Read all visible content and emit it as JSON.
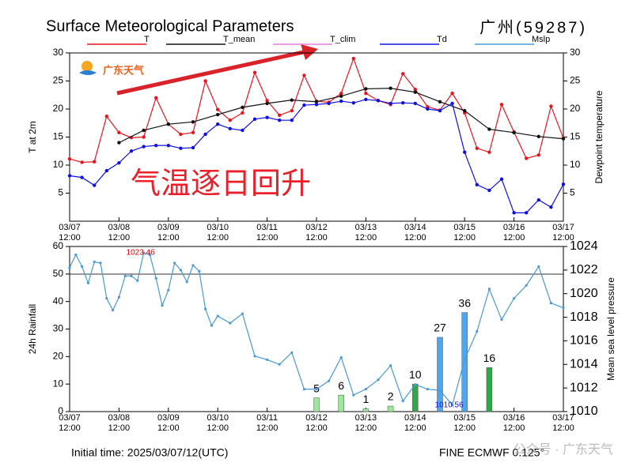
{
  "header": {
    "title": "Surface Meteorological Parameters",
    "station": "广州(59287)",
    "overlay": "气温逐日回升",
    "logo": "广东天气"
  },
  "footer": {
    "init": "Initial time: 2025/03/07/12(UTC)",
    "model": "FINE ECMWF 0.125°",
    "watermark": "公众号 · 广东天气"
  },
  "legend_only": [
    {
      "name": "T_clim",
      "color": "#e87fe0"
    }
  ],
  "chart_data": [
    {
      "type": "line",
      "ylabel": "T at 2m",
      "y2label": "Dewpoint temperature",
      "xlim": [
        0,
        10
      ],
      "xticks": [
        {
          "value": 0,
          "label": "03/07\n12:00"
        },
        {
          "value": 1,
          "label": "03/08\n12:00"
        },
        {
          "value": 2,
          "label": "03/09\n12:00"
        },
        {
          "value": 3,
          "label": "03/10\n12:00"
        },
        {
          "value": 4,
          "label": "03/11\n12:00"
        },
        {
          "value": 5,
          "label": "03/12\n12:00"
        },
        {
          "value": 6,
          "label": "03/13\n12:00"
        },
        {
          "value": 7,
          "label": "03/14\n12:00"
        },
        {
          "value": 8,
          "label": "03/15\n12:00"
        },
        {
          "value": 9,
          "label": "03/16\n12:00"
        },
        {
          "value": 10,
          "label": "03/17\n12:00"
        }
      ],
      "ylim": [
        0,
        30
      ],
      "yticks": [
        5,
        10,
        15,
        20,
        25,
        30
      ],
      "y2lim": [
        0,
        30
      ],
      "y2ticks": [
        5,
        10,
        15,
        20,
        25,
        30
      ],
      "series": [
        {
          "name": "T",
          "color": "#e8141e",
          "x": [
            0,
            0.25,
            0.5,
            0.75,
            1,
            1.25,
            1.5,
            1.75,
            2,
            2.25,
            2.5,
            2.75,
            3,
            3.25,
            3.5,
            3.75,
            4,
            4.25,
            4.5,
            4.75,
            5,
            5.25,
            5.5,
            5.75,
            6,
            6.25,
            6.5,
            6.75,
            7,
            7.25,
            7.5,
            7.75,
            8,
            8.25,
            8.5,
            8.75,
            9,
            9.25,
            9.5,
            9.75,
            10
          ],
          "values": [
            11.1,
            10.5,
            10.6,
            18.7,
            15.8,
            14.9,
            15,
            22,
            17.3,
            15.5,
            15.8,
            25,
            19.9,
            18,
            19.3,
            26.5,
            21.5,
            18.9,
            19.7,
            26,
            21.4,
            21.2,
            22.8,
            29,
            22.8,
            21.5,
            20.8,
            26.3,
            23.5,
            20.4,
            19.8,
            22.8,
            19.3,
            13,
            12.3,
            20.8,
            15.9,
            11.2,
            11.8,
            20.5,
            14.8
          ]
        },
        {
          "name": "T_mean",
          "color": "#111111",
          "x": [
            1,
            1.5,
            2,
            2.5,
            3,
            3.5,
            4,
            4.5,
            5,
            5.5,
            6,
            6.5,
            7,
            7.5,
            8,
            8.5,
            9,
            9.5,
            10
          ],
          "values": [
            14,
            16.2,
            17.3,
            17.7,
            19,
            20.3,
            21,
            21.6,
            21.3,
            22.3,
            23.6,
            23.7,
            23,
            21.3,
            19.7,
            16.4,
            15.8,
            15.1,
            14.7
          ]
        },
        {
          "name": "Td",
          "color": "#1010e0",
          "axis": "y2",
          "x": [
            0,
            0.25,
            0.5,
            0.75,
            1,
            1.25,
            1.5,
            1.75,
            2,
            2.25,
            2.5,
            2.75,
            3,
            3.25,
            3.5,
            3.75,
            4,
            4.25,
            4.5,
            4.75,
            5,
            5.25,
            5.5,
            5.75,
            6,
            6.25,
            6.5,
            6.75,
            7,
            7.25,
            7.5,
            7.75,
            8,
            8.25,
            8.5,
            8.75,
            9,
            9.25,
            9.5,
            9.75,
            10
          ],
          "values": [
            8.1,
            7.8,
            6.4,
            9,
            10.4,
            12.5,
            13.3,
            13.5,
            13.5,
            13,
            13.1,
            15.5,
            17.3,
            16.5,
            16.2,
            18.2,
            18.5,
            18,
            18,
            20.7,
            20.8,
            21,
            21.4,
            21.1,
            21.7,
            21.5,
            21,
            21.1,
            21,
            20,
            19.7,
            21,
            12.3,
            6.5,
            5.5,
            7.5,
            1.5,
            1.5,
            3.8,
            2.5,
            6.6
          ]
        }
      ]
    },
    {
      "type": "bar",
      "ylabel": "24h Rainfall",
      "y2label": "Mean sea level pressure",
      "xlim": [
        0,
        10
      ],
      "xticks": [
        {
          "value": 0,
          "label": "03/07\n12:00"
        },
        {
          "value": 1,
          "label": "03/08\n12:00"
        },
        {
          "value": 2,
          "label": "03/09\n12:00"
        },
        {
          "value": 3,
          "label": "03/10\n12:00"
        },
        {
          "value": 4,
          "label": "03/11\n12:00"
        },
        {
          "value": 5,
          "label": "03/12\n12:00"
        },
        {
          "value": 6,
          "label": "03/13\n12:00"
        },
        {
          "value": 7,
          "label": "03/14\n12:00"
        },
        {
          "value": 8,
          "label": "03/15\n12:00"
        },
        {
          "value": 9,
          "label": "03/16\n12:00"
        },
        {
          "value": 10,
          "label": "03/17\n12:00"
        }
      ],
      "ylim": [
        0,
        60
      ],
      "yticks": [
        0,
        10,
        20,
        30,
        40,
        50,
        60
      ],
      "y2lim": [
        1010,
        1024
      ],
      "y2ticks": [
        1010,
        1012,
        1014,
        1016,
        1018,
        1020,
        1022,
        1024
      ],
      "bars": {
        "x": [
          5,
          5.5,
          6,
          6.5,
          7,
          7.5,
          8,
          8.5
        ],
        "values": [
          5,
          6,
          1,
          2,
          10,
          27,
          36,
          16
        ],
        "colors": [
          "#9be89b",
          "#9be89b",
          "#9be89b",
          "#9be89b",
          "#30a84a",
          "#4fa6ec",
          "#4fa6ec",
          "#30a84a"
        ]
      },
      "series": [
        {
          "name": "Mslp",
          "color": "#4a9ad6",
          "axis": "y2",
          "x": [
            0,
            0.125,
            0.25,
            0.375,
            0.5,
            0.625,
            0.75,
            0.875,
            1,
            1.125,
            1.25,
            1.375,
            1.5,
            1.625,
            1.75,
            1.875,
            2,
            2.125,
            2.25,
            2.375,
            2.5,
            2.625,
            2.75,
            2.875,
            3,
            3.25,
            3.5,
            3.75,
            4,
            4.25,
            4.5,
            4.75,
            5,
            5.25,
            5.5,
            5.75,
            6,
            6.25,
            6.5,
            6.75,
            7,
            7.25,
            7.5,
            7.75,
            8,
            8.25,
            8.5,
            8.75,
            9,
            9.25,
            9.5,
            9.75,
            10
          ],
          "values": [
            1022.2,
            1023.3,
            1022.3,
            1020.9,
            1022.7,
            1022.6,
            1019.6,
            1018.6,
            1019.7,
            1021.5,
            1021.5,
            1021.1,
            1023.46,
            1023.3,
            1021.3,
            1019,
            1020.3,
            1022.6,
            1022,
            1021,
            1022.4,
            1021.9,
            1018.7,
            1017.3,
            1018.1,
            1017.5,
            1018.3,
            1014.7,
            1014.4,
            1014,
            1015,
            1011.9,
            1011.9,
            1012.6,
            1014.6,
            1011.4,
            1011.9,
            1012.7,
            1013.9,
            1010.9,
            1012.3,
            1011.9,
            1011.8,
            1010.56,
            1014.4,
            1016.8,
            1020.4,
            1017.8,
            1019.6,
            1020.7,
            1022.3,
            1019.2,
            1018.8
          ]
        }
      ],
      "annotations": [
        {
          "index": 12,
          "color": "#e00000"
        },
        {
          "index": 43,
          "color": "#1010e0"
        }
      ]
    }
  ]
}
